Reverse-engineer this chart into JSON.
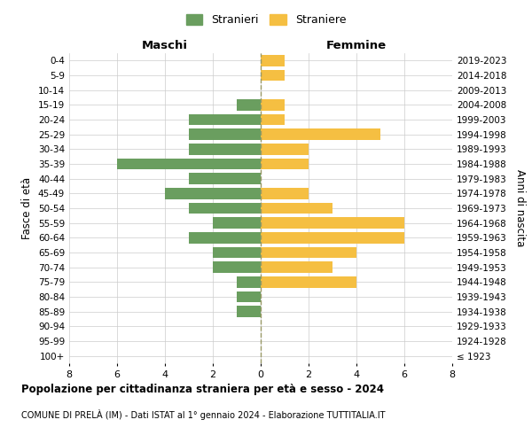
{
  "age_groups": [
    "100+",
    "95-99",
    "90-94",
    "85-89",
    "80-84",
    "75-79",
    "70-74",
    "65-69",
    "60-64",
    "55-59",
    "50-54",
    "45-49",
    "40-44",
    "35-39",
    "30-34",
    "25-29",
    "20-24",
    "15-19",
    "10-14",
    "5-9",
    "0-4"
  ],
  "birth_years": [
    "≤ 1923",
    "1924-1928",
    "1929-1933",
    "1934-1938",
    "1939-1943",
    "1944-1948",
    "1949-1953",
    "1954-1958",
    "1959-1963",
    "1964-1968",
    "1969-1973",
    "1974-1978",
    "1979-1983",
    "1984-1988",
    "1989-1993",
    "1994-1998",
    "1999-2003",
    "2004-2008",
    "2009-2013",
    "2014-2018",
    "2019-2023"
  ],
  "males": [
    0,
    0,
    0,
    1,
    1,
    1,
    2,
    2,
    3,
    2,
    3,
    4,
    3,
    6,
    3,
    3,
    3,
    1,
    0,
    0,
    0
  ],
  "females": [
    0,
    0,
    0,
    0,
    0,
    4,
    3,
    4,
    6,
    6,
    3,
    2,
    0,
    2,
    2,
    5,
    1,
    1,
    0,
    1,
    1
  ],
  "male_color": "#6a9e5f",
  "female_color": "#f5bf42",
  "xlim": 8,
  "title": "Popolazione per cittadinanza straniera per età e sesso - 2024",
  "subtitle": "COMUNE DI PRELÀ (IM) - Dati ISTAT al 1° gennaio 2024 - Elaborazione TUTTITALIA.IT",
  "legend_male": "Stranieri",
  "legend_female": "Straniere",
  "ylabel_left": "Fasce di età",
  "ylabel_right": "Anni di nascita",
  "xlabel_left": "Maschi",
  "xlabel_right": "Femmine",
  "background_color": "#ffffff",
  "grid_color": "#cccccc"
}
